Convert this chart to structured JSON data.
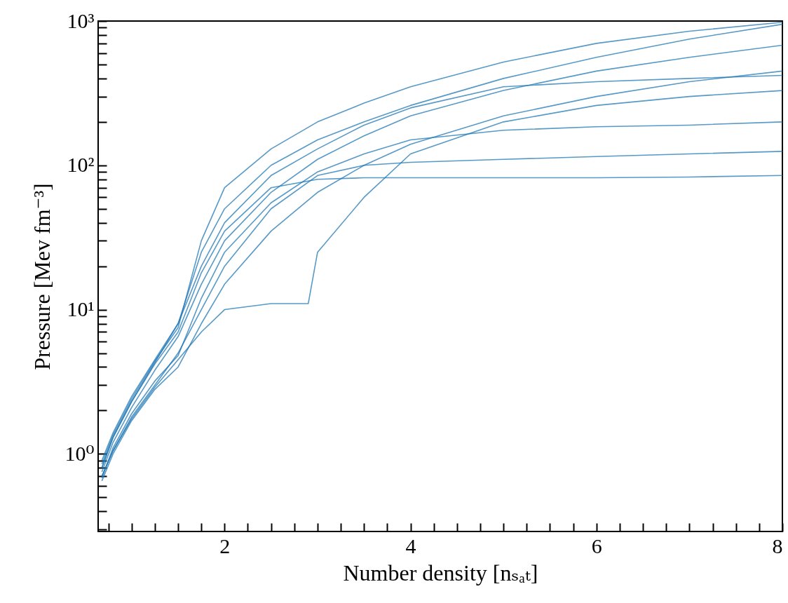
{
  "chart_data": {
    "type": "line",
    "xlabel": "Number density [nₛₐₜ]",
    "ylabel": "Pressure [Mev fm⁻³]",
    "log": "y",
    "xlim": [
      0.64,
      8
    ],
    "ylim": [
      0.29,
      1000
    ],
    "xticks": [
      {
        "value": 0.75,
        "label": null
      },
      {
        "value": 1,
        "label": null
      },
      {
        "value": 1.25,
        "label": null
      },
      {
        "value": 1.5,
        "label": null
      },
      {
        "value": 1.75,
        "label": null
      },
      2,
      {
        "value": 2.25,
        "label": null
      },
      {
        "value": 2.5,
        "label": null
      },
      {
        "value": 2.75,
        "label": null
      },
      {
        "value": 3,
        "label": null
      },
      {
        "value": 3.25,
        "label": null
      },
      {
        "value": 3.5,
        "label": null
      },
      {
        "value": 3.75,
        "label": null
      },
      4,
      {
        "value": 4.25,
        "label": null
      },
      {
        "value": 4.5,
        "label": null
      },
      {
        "value": 4.75,
        "label": null
      },
      {
        "value": 5,
        "label": null
      },
      {
        "value": 5.25,
        "label": null
      },
      {
        "value": 5.5,
        "label": null
      },
      {
        "value": 5.75,
        "label": null
      },
      6,
      {
        "value": 6.25,
        "label": null
      },
      {
        "value": 6.5,
        "label": null
      },
      {
        "value": 6.75,
        "label": null
      },
      {
        "value": 7,
        "label": null
      },
      {
        "value": 7.25,
        "label": null
      },
      {
        "value": 7.5,
        "label": null
      },
      {
        "value": 7.75,
        "label": null
      },
      8
    ],
    "yticks": [
      {
        "value": 0.3,
        "label": null
      },
      {
        "value": 0.4,
        "label": null
      },
      {
        "value": 0.5,
        "label": null
      },
      {
        "value": 0.6,
        "label": null
      },
      {
        "value": 0.7,
        "label": null
      },
      {
        "value": 0.8,
        "label": null
      },
      {
        "value": 0.9,
        "label": null
      },
      {
        "value": 1,
        "label": "10⁰"
      },
      {
        "value": 2,
        "label": null
      },
      {
        "value": 3,
        "label": null
      },
      {
        "value": 4,
        "label": null
      },
      {
        "value": 5,
        "label": null
      },
      {
        "value": 6,
        "label": null
      },
      {
        "value": 7,
        "label": null
      },
      {
        "value": 8,
        "label": null
      },
      {
        "value": 9,
        "label": null
      },
      {
        "value": 10,
        "label": "10¹"
      },
      {
        "value": 20,
        "label": null
      },
      {
        "value": 30,
        "label": null
      },
      {
        "value": 40,
        "label": null
      },
      {
        "value": 50,
        "label": null
      },
      {
        "value": 60,
        "label": null
      },
      {
        "value": 70,
        "label": null
      },
      {
        "value": 80,
        "label": null
      },
      {
        "value": 90,
        "label": null
      },
      {
        "value": 100,
        "label": "10²"
      },
      {
        "value": 200,
        "label": null
      },
      {
        "value": 300,
        "label": null
      },
      {
        "value": 400,
        "label": null
      },
      {
        "value": 500,
        "label": null
      },
      {
        "value": 600,
        "label": null
      },
      {
        "value": 700,
        "label": null
      },
      {
        "value": 800,
        "label": null
      },
      {
        "value": 900,
        "label": null
      },
      {
        "value": 1000,
        "label": "10³"
      }
    ],
    "series": [
      {
        "color": "#1f77b4",
        "x": [
          0.68,
          0.8,
          1,
          1.25,
          1.5,
          1.75,
          2,
          2.5,
          3,
          3.5,
          4,
          5,
          6,
          7,
          8
        ],
        "values": [
          0.9,
          1.4,
          2.5,
          4.5,
          8,
          25,
          50,
          100,
          150,
          200,
          260,
          400,
          560,
          750,
          950
        ]
      },
      {
        "color": "#1f77b4",
        "x": [
          0.68,
          0.8,
          1,
          1.25,
          1.5,
          1.75,
          2,
          2.5,
          3,
          3.5,
          4,
          5,
          6,
          7,
          8
        ],
        "values": [
          0.75,
          1.2,
          2.1,
          3.8,
          6.5,
          15,
          30,
          65,
          110,
          160,
          220,
          330,
          450,
          560,
          680
        ]
      },
      {
        "color": "#1f77b4",
        "x": [
          0.68,
          0.8,
          1,
          1.25,
          1.5,
          1.75,
          2,
          2.5,
          3,
          3.5,
          4,
          5,
          6,
          7,
          8
        ],
        "values": [
          0.65,
          1,
          1.7,
          2.8,
          4,
          8,
          15,
          35,
          65,
          100,
          140,
          220,
          300,
          380,
          450
        ]
      },
      {
        "color": "#1f77b4",
        "x": [
          0.68,
          0.8,
          1,
          1.25,
          1.5,
          1.75,
          2,
          2.5,
          3,
          3.5,
          4,
          5,
          6,
          7,
          8
        ],
        "values": [
          0.7,
          1.05,
          1.8,
          3,
          5,
          10,
          20,
          50,
          85,
          100,
          105,
          110,
          115,
          120,
          125
        ]
      },
      {
        "color": "#1f77b4",
        "x": [
          0.68,
          0.8,
          1,
          1.25,
          1.5,
          1.75,
          2,
          2.5,
          3,
          3.5,
          4,
          5,
          6,
          7,
          8
        ],
        "values": [
          0.8,
          1.3,
          2.3,
          4.2,
          7,
          18,
          35,
          70,
          80,
          82,
          82,
          82,
          82,
          83,
          85
        ]
      },
      {
        "color": "#1f77b4",
        "x": [
          0.68,
          0.8,
          1,
          1.25,
          1.5,
          1.75,
          2,
          2.5,
          3,
          3.5,
          4,
          5,
          6,
          7,
          8
        ],
        "values": [
          0.85,
          1.35,
          2.4,
          4.4,
          7.5,
          30,
          70,
          130,
          200,
          270,
          350,
          520,
          700,
          850,
          980
        ]
      },
      {
        "color": "#1f77b4",
        "x": [
          0.68,
          0.8,
          1,
          1.25,
          1.5,
          1.75,
          2,
          2.5,
          2.9,
          3,
          3.5,
          4,
          5,
          6,
          7,
          8
        ],
        "values": [
          0.7,
          1.05,
          1.75,
          2.9,
          4.5,
          7,
          10,
          11,
          11,
          25,
          60,
          120,
          200,
          260,
          300,
          330
        ]
      },
      {
        "color": "#1f77b4",
        "x": [
          0.68,
          0.8,
          1,
          1.25,
          1.5,
          1.75,
          2,
          2.5,
          3,
          3.5,
          4,
          5,
          6,
          7,
          8
        ],
        "values": [
          0.8,
          1.3,
          2.3,
          4.3,
          8,
          20,
          40,
          85,
          130,
          190,
          250,
          350,
          380,
          400,
          420
        ]
      },
      {
        "color": "#1f77b4",
        "x": [
          0.68,
          0.8,
          1,
          1.25,
          1.5,
          1.75,
          2,
          2.5,
          3,
          3.5,
          4,
          5,
          6,
          7,
          8
        ],
        "values": [
          0.68,
          1.1,
          1.9,
          3.2,
          4.8,
          12,
          25,
          55,
          90,
          120,
          150,
          175,
          185,
          190,
          200
        ]
      }
    ]
  }
}
